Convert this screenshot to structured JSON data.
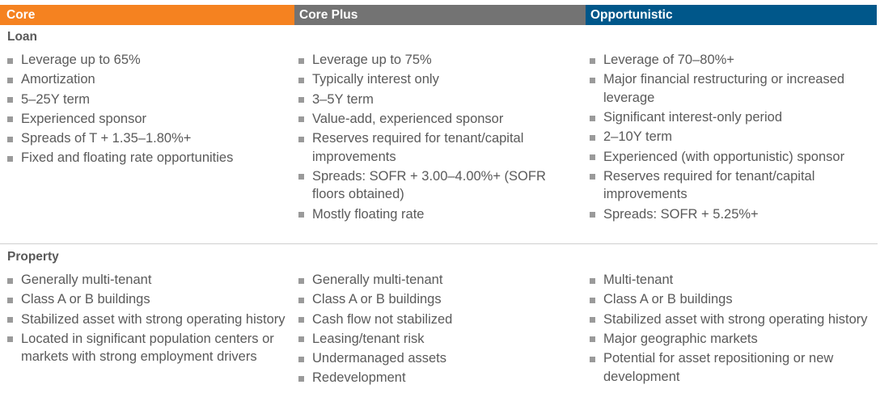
{
  "colors": {
    "core_header": "#f58220",
    "core_plus_header": "#737373",
    "opportunistic_header": "#00578a",
    "text": "#5a5a5a",
    "bullet": "#9a9a9a",
    "divider": "#cfcfcf"
  },
  "header": {
    "core": "Core",
    "core_plus": "Core Plus",
    "opportunistic": "Opportunistic"
  },
  "loan": {
    "title": "Loan",
    "core": [
      "Leverage up to 65%",
      "Amortization",
      "5–25Y term",
      "Experienced sponsor",
      "Spreads of T + 1.35–1.80%+",
      "Fixed and floating rate opportunities"
    ],
    "core_plus": [
      "Leverage up to 75%",
      "Typically interest only",
      "3–5Y term",
      "Value-add, experienced sponsor",
      "Reserves required for tenant/capital improvements",
      "Spreads: SOFR + 3.00–4.00%+ (SOFR floors obtained)",
      "Mostly floating rate"
    ],
    "opportunistic": [
      "Leverage of 70–80%+",
      "Major financial restructuring or increased leverage",
      "Significant interest-only period",
      "2–10Y term",
      "Experienced (with opportunistic) sponsor",
      "Reserves required for tenant/capital improvements",
      "Spreads: SOFR + 5.25%+"
    ]
  },
  "property": {
    "title": "Property",
    "core": [
      "Generally multi-tenant",
      "Class A or B buildings",
      "Stabilized asset with strong operating history",
      "Located in significant population centers or markets with strong employment drivers"
    ],
    "core_plus": [
      "Generally multi-tenant",
      "Class A or B buildings",
      "Cash flow not stabilized",
      "Leasing/tenant risk",
      "Undermanaged assets",
      "Redevelopment"
    ],
    "opportunistic": [
      "Multi-tenant",
      "Class A or B buildings",
      "Stabilized asset with strong operating history",
      "Major geographic markets",
      "Potential for asset repositioning or new development"
    ]
  }
}
